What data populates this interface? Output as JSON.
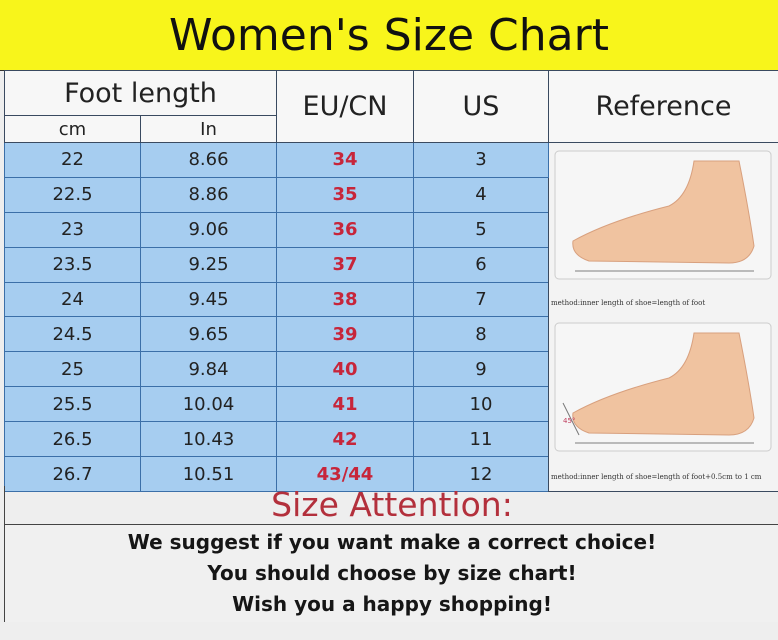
{
  "title": "Women's Size Chart",
  "headers": {
    "foot_length": "Foot length",
    "cm": "cm",
    "in": "In",
    "eu": "EU/CN",
    "us": "US",
    "reference": "Reference"
  },
  "rows": [
    {
      "cm": "22",
      "in": "8.66",
      "eu": "34",
      "us": "3"
    },
    {
      "cm": "22.5",
      "in": "8.86",
      "eu": "35",
      "us": "4"
    },
    {
      "cm": "23",
      "in": "9.06",
      "eu": "36",
      "us": "5"
    },
    {
      "cm": "23.5",
      "in": "9.25",
      "eu": "37",
      "us": "6"
    },
    {
      "cm": "24",
      "in": "9.45",
      "eu": "38",
      "us": "7"
    },
    {
      "cm": "24.5",
      "in": "9.65",
      "eu": "39",
      "us": "8"
    },
    {
      "cm": "25",
      "in": "9.84",
      "eu": "40",
      "us": "9"
    },
    {
      "cm": "25.5",
      "in": "10.04",
      "eu": "41",
      "us": "10"
    },
    {
      "cm": "26.5",
      "in": "10.43",
      "eu": "42",
      "us": "11"
    },
    {
      "cm": "26.7",
      "in": "10.51",
      "eu": "43/44",
      "us": "12"
    }
  ],
  "reference": {
    "caption1": "method:inner length of shoe=length of foot",
    "caption2": "method:inner length of shoe=length of foot+0.5cm to 1 cm",
    "angle": "45°"
  },
  "attention": {
    "title": "Size Attention:",
    "lines": [
      "We suggest if you want make a correct choice!",
      "You should choose by size chart!",
      "Wish you a happy shopping!"
    ]
  },
  "colors": {
    "title_bg": "#f8f51b",
    "row_bg": "#a6cdf0",
    "eu_text": "#c7253a",
    "attention_text": "#b3303c"
  }
}
